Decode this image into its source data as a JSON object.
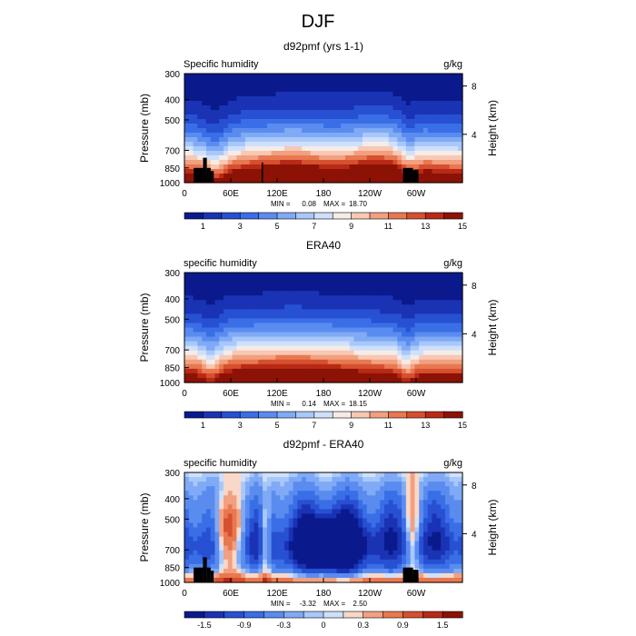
{
  "figure_title": "DJF",
  "chart_data": [
    {
      "type": "heatmap",
      "title": "d92pmf (yrs 1-1)",
      "left_label": "Specific humidity",
      "units": "g/kg",
      "ylabel": "Pressure (mb)",
      "ylabel_right": "Height (km)",
      "yticks": [
        "300",
        "400",
        "500",
        "700",
        "850",
        "1000"
      ],
      "yticks_right": [
        "8",
        "4"
      ],
      "xticks": [
        "0",
        "60E",
        "120E",
        "180",
        "120W",
        "60W"
      ],
      "stats": {
        "min_label": "MIN =",
        "min": "0.08",
        "max_label": "MAX =",
        "max": "18.70"
      },
      "colorbar_labels": [
        "1",
        "3",
        "5",
        "7",
        "9",
        "11",
        "13",
        "15"
      ],
      "field": "model"
    },
    {
      "type": "heatmap",
      "title": "ERA40",
      "left_label": "specific humidity",
      "units": "g/kg",
      "ylabel": "Pressure (mb)",
      "ylabel_right": "Height (km)",
      "yticks": [
        "300",
        "400",
        "500",
        "700",
        "850",
        "1000"
      ],
      "yticks_right": [
        "8",
        "4"
      ],
      "xticks": [
        "0",
        "60E",
        "120E",
        "180",
        "120W",
        "60W"
      ],
      "stats": {
        "min_label": "MIN =",
        "min": "0.14",
        "max_label": "MAX =",
        "max": "18.15"
      },
      "colorbar_labels": [
        "1",
        "3",
        "5",
        "7",
        "9",
        "11",
        "13",
        "15"
      ],
      "field": "obs"
    },
    {
      "type": "heatmap",
      "title": "d92pmf - ERA40",
      "left_label": "specific humidity",
      "units": "g/kg",
      "ylabel": "Pressure (mb)",
      "ylabel_right": "Height (km)",
      "yticks": [
        "300",
        "400",
        "500",
        "700",
        "850",
        "1000"
      ],
      "yticks_right": [
        "8",
        "4"
      ],
      "xticks": [
        "0",
        "60E",
        "120E",
        "180",
        "120W",
        "60W"
      ],
      "stats": {
        "min_label": "MIN =",
        "min": "-3.32",
        "max_label": "MAX =",
        "max": "2.50"
      },
      "colorbar_labels": [
        "-1.5",
        "-0.9",
        "-0.3",
        "0",
        "0.3",
        "0.9",
        "1.5"
      ],
      "field": "diff"
    }
  ],
  "colors": {
    "abs_scale": [
      "#0a1a8c",
      "#1a32b4",
      "#2750d2",
      "#3a6ee6",
      "#5a8cf0",
      "#80aaf5",
      "#a8c8fa",
      "#cfe0fc",
      "#f5ece6",
      "#f8c8b4",
      "#f2a080",
      "#e87850",
      "#d65030",
      "#b82a16",
      "#8c1206"
    ],
    "diff_scale": [
      "#0a1a8c",
      "#1a32b4",
      "#2750d2",
      "#3a6ee6",
      "#5a8cf0",
      "#80aaf5",
      "#a8c8fa",
      "#cfe0fc",
      "#f8d8c8",
      "#f2a080",
      "#e87850",
      "#d65030",
      "#b82a16",
      "#8c1206"
    ]
  }
}
